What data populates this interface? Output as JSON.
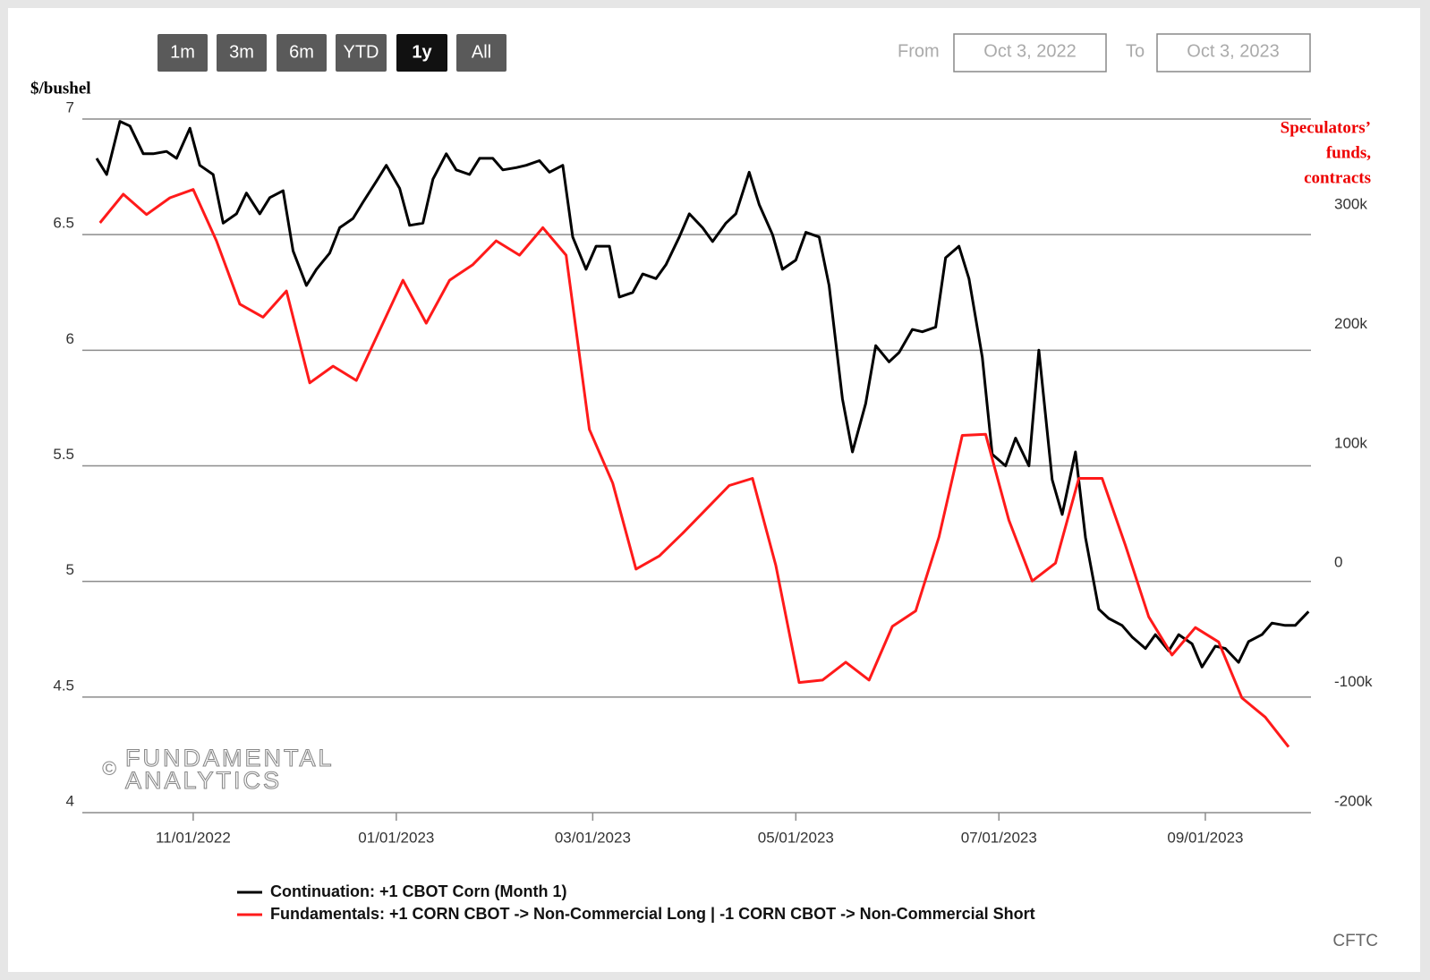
{
  "range_selector": {
    "buttons": [
      "1m",
      "3m",
      "6m",
      "YTD",
      "1y",
      "All"
    ],
    "active": 4,
    "from_label": "From",
    "from": "Oct 3, 2022",
    "to_label": "To",
    "to": "Oct 3, 2023"
  },
  "chart_data": {
    "type": "line",
    "ylabel": "$/bushel",
    "y2label": [
      "Speculators’",
      "funds,",
      "contracts"
    ],
    "xlim": [
      "10/03/2022",
      "10/03/2023"
    ],
    "xticks": [
      "11/01/2022",
      "01/01/2023",
      "03/01/2023",
      "05/01/2023",
      "07/01/2023",
      "09/01/2023"
    ],
    "ylim": [
      4,
      7
    ],
    "yticks": [
      4,
      4.5,
      5,
      5.5,
      6,
      6.5,
      7
    ],
    "y2lim": [
      -200000,
      381000
    ],
    "y2ticks": [
      {
        "value": -200000,
        "label": "-200k"
      },
      {
        "value": -100000,
        "label": "-100k"
      },
      0,
      {
        "value": 100000,
        "label": "100k"
      },
      {
        "value": 200000,
        "label": "200k"
      },
      {
        "value": 300000,
        "label": "300k"
      }
    ],
    "grid": true,
    "series": [
      {
        "name": "Continuation: +1 CBOT Corn (Month 1)",
        "color": "#000000",
        "x": [
          "10/03/2022",
          "10/06/2022",
          "10/10/2022",
          "10/13/2022",
          "10/17/2022",
          "10/20/2022",
          "10/24/2022",
          "10/27/2022",
          "10/31/2022",
          "11/03/2022",
          "11/07/2022",
          "11/10/2022",
          "11/14/2022",
          "11/17/2022",
          "11/21/2022",
          "11/24/2022",
          "11/28/2022",
          "12/01/2022",
          "12/05/2022",
          "12/08/2022",
          "12/12/2022",
          "12/15/2022",
          "12/19/2022",
          "12/22/2022",
          "12/26/2022",
          "12/29/2022",
          "01/02/2023",
          "01/05/2023",
          "01/09/2023",
          "01/12/2023",
          "01/16/2023",
          "01/19/2023",
          "01/23/2023",
          "01/26/2023",
          "01/30/2023",
          "02/02/2023",
          "02/06/2023",
          "02/09/2023",
          "02/13/2023",
          "02/16/2023",
          "02/20/2023",
          "02/23/2023",
          "02/27/2023",
          "03/02/2023",
          "03/06/2023",
          "03/09/2023",
          "03/13/2023",
          "03/16/2023",
          "03/20/2023",
          "03/23/2023",
          "03/27/2023",
          "03/30/2023",
          "04/03/2023",
          "04/06/2023",
          "04/10/2023",
          "04/13/2023",
          "04/17/2023",
          "04/20/2023",
          "04/24/2023",
          "04/27/2023",
          "05/01/2023",
          "05/04/2023",
          "05/08/2023",
          "05/11/2023",
          "05/15/2023",
          "05/18/2023",
          "05/22/2023",
          "05/25/2023",
          "05/29/2023",
          "06/01/2023",
          "06/05/2023",
          "06/08/2023",
          "06/12/2023",
          "06/15/2023",
          "06/19/2023",
          "06/22/2023",
          "06/26/2023",
          "06/29/2023",
          "07/03/2023",
          "07/06/2023",
          "07/10/2023",
          "07/13/2023",
          "07/17/2023",
          "07/20/2023",
          "07/24/2023",
          "07/27/2023",
          "07/31/2023",
          "08/03/2023",
          "08/07/2023",
          "08/10/2023",
          "08/14/2023",
          "08/17/2023",
          "08/21/2023",
          "08/24/2023",
          "08/28/2023",
          "08/31/2023",
          "09/04/2023",
          "09/07/2023",
          "09/11/2023",
          "09/14/2023",
          "09/18/2023",
          "09/21/2023",
          "09/25/2023",
          "09/28/2023",
          "10/02/2023"
        ],
        "values": [
          6.83,
          6.76,
          6.99,
          6.97,
          6.85,
          6.85,
          6.86,
          6.83,
          6.96,
          6.8,
          6.76,
          6.55,
          6.59,
          6.68,
          6.59,
          6.66,
          6.69,
          6.43,
          6.28,
          6.35,
          6.42,
          6.53,
          6.57,
          6.64,
          6.73,
          6.8,
          6.7,
          6.54,
          6.55,
          6.74,
          6.85,
          6.78,
          6.76,
          6.83,
          6.83,
          6.78,
          6.79,
          6.8,
          6.82,
          6.77,
          6.8,
          6.49,
          6.35,
          6.45,
          6.45,
          6.23,
          6.25,
          6.33,
          6.31,
          6.37,
          6.49,
          6.59,
          6.53,
          6.47,
          6.55,
          6.59,
          6.77,
          6.63,
          6.5,
          6.35,
          6.39,
          6.51,
          6.49,
          6.28,
          5.79,
          5.56,
          5.77,
          6.02,
          5.95,
          5.99,
          6.09,
          6.08,
          6.1,
          6.4,
          6.45,
          6.31,
          5.97,
          5.55,
          5.5,
          5.62,
          5.5,
          6.0,
          5.44,
          5.29,
          5.56,
          5.19,
          4.88,
          4.84,
          4.81,
          4.76,
          4.71,
          4.77,
          4.7,
          4.77,
          4.73,
          4.63,
          4.72,
          4.71,
          4.65,
          4.74,
          4.77,
          4.82,
          4.81,
          4.81,
          4.87
        ]
      },
      {
        "name": "Fundamentals: +1 CORN CBOT -> Non-Commercial Long | -1 CORN CBOT -> Non-Commercial Short",
        "color": "#ff1a1a",
        "axis": "y2",
        "x": [
          "10/04/2022",
          "10/11/2022",
          "10/18/2022",
          "10/25/2022",
          "11/01/2022",
          "11/08/2022",
          "11/15/2022",
          "11/22/2022",
          "11/29/2022",
          "12/06/2022",
          "12/13/2022",
          "12/20/2022",
          "12/27/2022",
          "01/03/2023",
          "01/10/2023",
          "01/17/2023",
          "01/24/2023",
          "01/31/2023",
          "02/07/2023",
          "02/14/2023",
          "02/21/2023",
          "02/28/2023",
          "03/07/2023",
          "03/14/2023",
          "03/21/2023",
          "03/28/2023",
          "04/04/2023",
          "04/11/2023",
          "04/18/2023",
          "04/25/2023",
          "05/02/2023",
          "05/09/2023",
          "05/16/2023",
          "05/23/2023",
          "05/30/2023",
          "06/06/2023",
          "06/13/2023",
          "06/20/2023",
          "06/27/2023",
          "07/04/2023",
          "07/11/2023",
          "07/18/2023",
          "07/25/2023",
          "08/01/2023",
          "08/08/2023",
          "08/15/2023",
          "08/22/2023",
          "08/29/2023",
          "09/05/2023",
          "09/12/2023",
          "09/19/2023",
          "09/26/2023"
        ],
        "values": [
          294000,
          318000,
          301000,
          315000,
          322000,
          279000,
          226000,
          215000,
          237000,
          160000,
          174000,
          162000,
          204000,
          246000,
          210000,
          246000,
          259000,
          279000,
          267000,
          290000,
          267000,
          121000,
          76000,
          4000,
          15000,
          34000,
          54000,
          74000,
          80000,
          7000,
          -91000,
          -89000,
          -74000,
          -89000,
          -44000,
          -31000,
          31000,
          116000,
          117000,
          45000,
          -6000,
          9000,
          80000,
          80000,
          24000,
          -36000,
          -68000,
          -45000,
          -57000,
          -104000,
          -120000,
          -145000
        ]
      }
    ],
    "watermark": {
      "symbol": "©",
      "lines": [
        "FUNDAMENTAL",
        "ANALYTICS"
      ]
    },
    "source": "CFTC"
  }
}
